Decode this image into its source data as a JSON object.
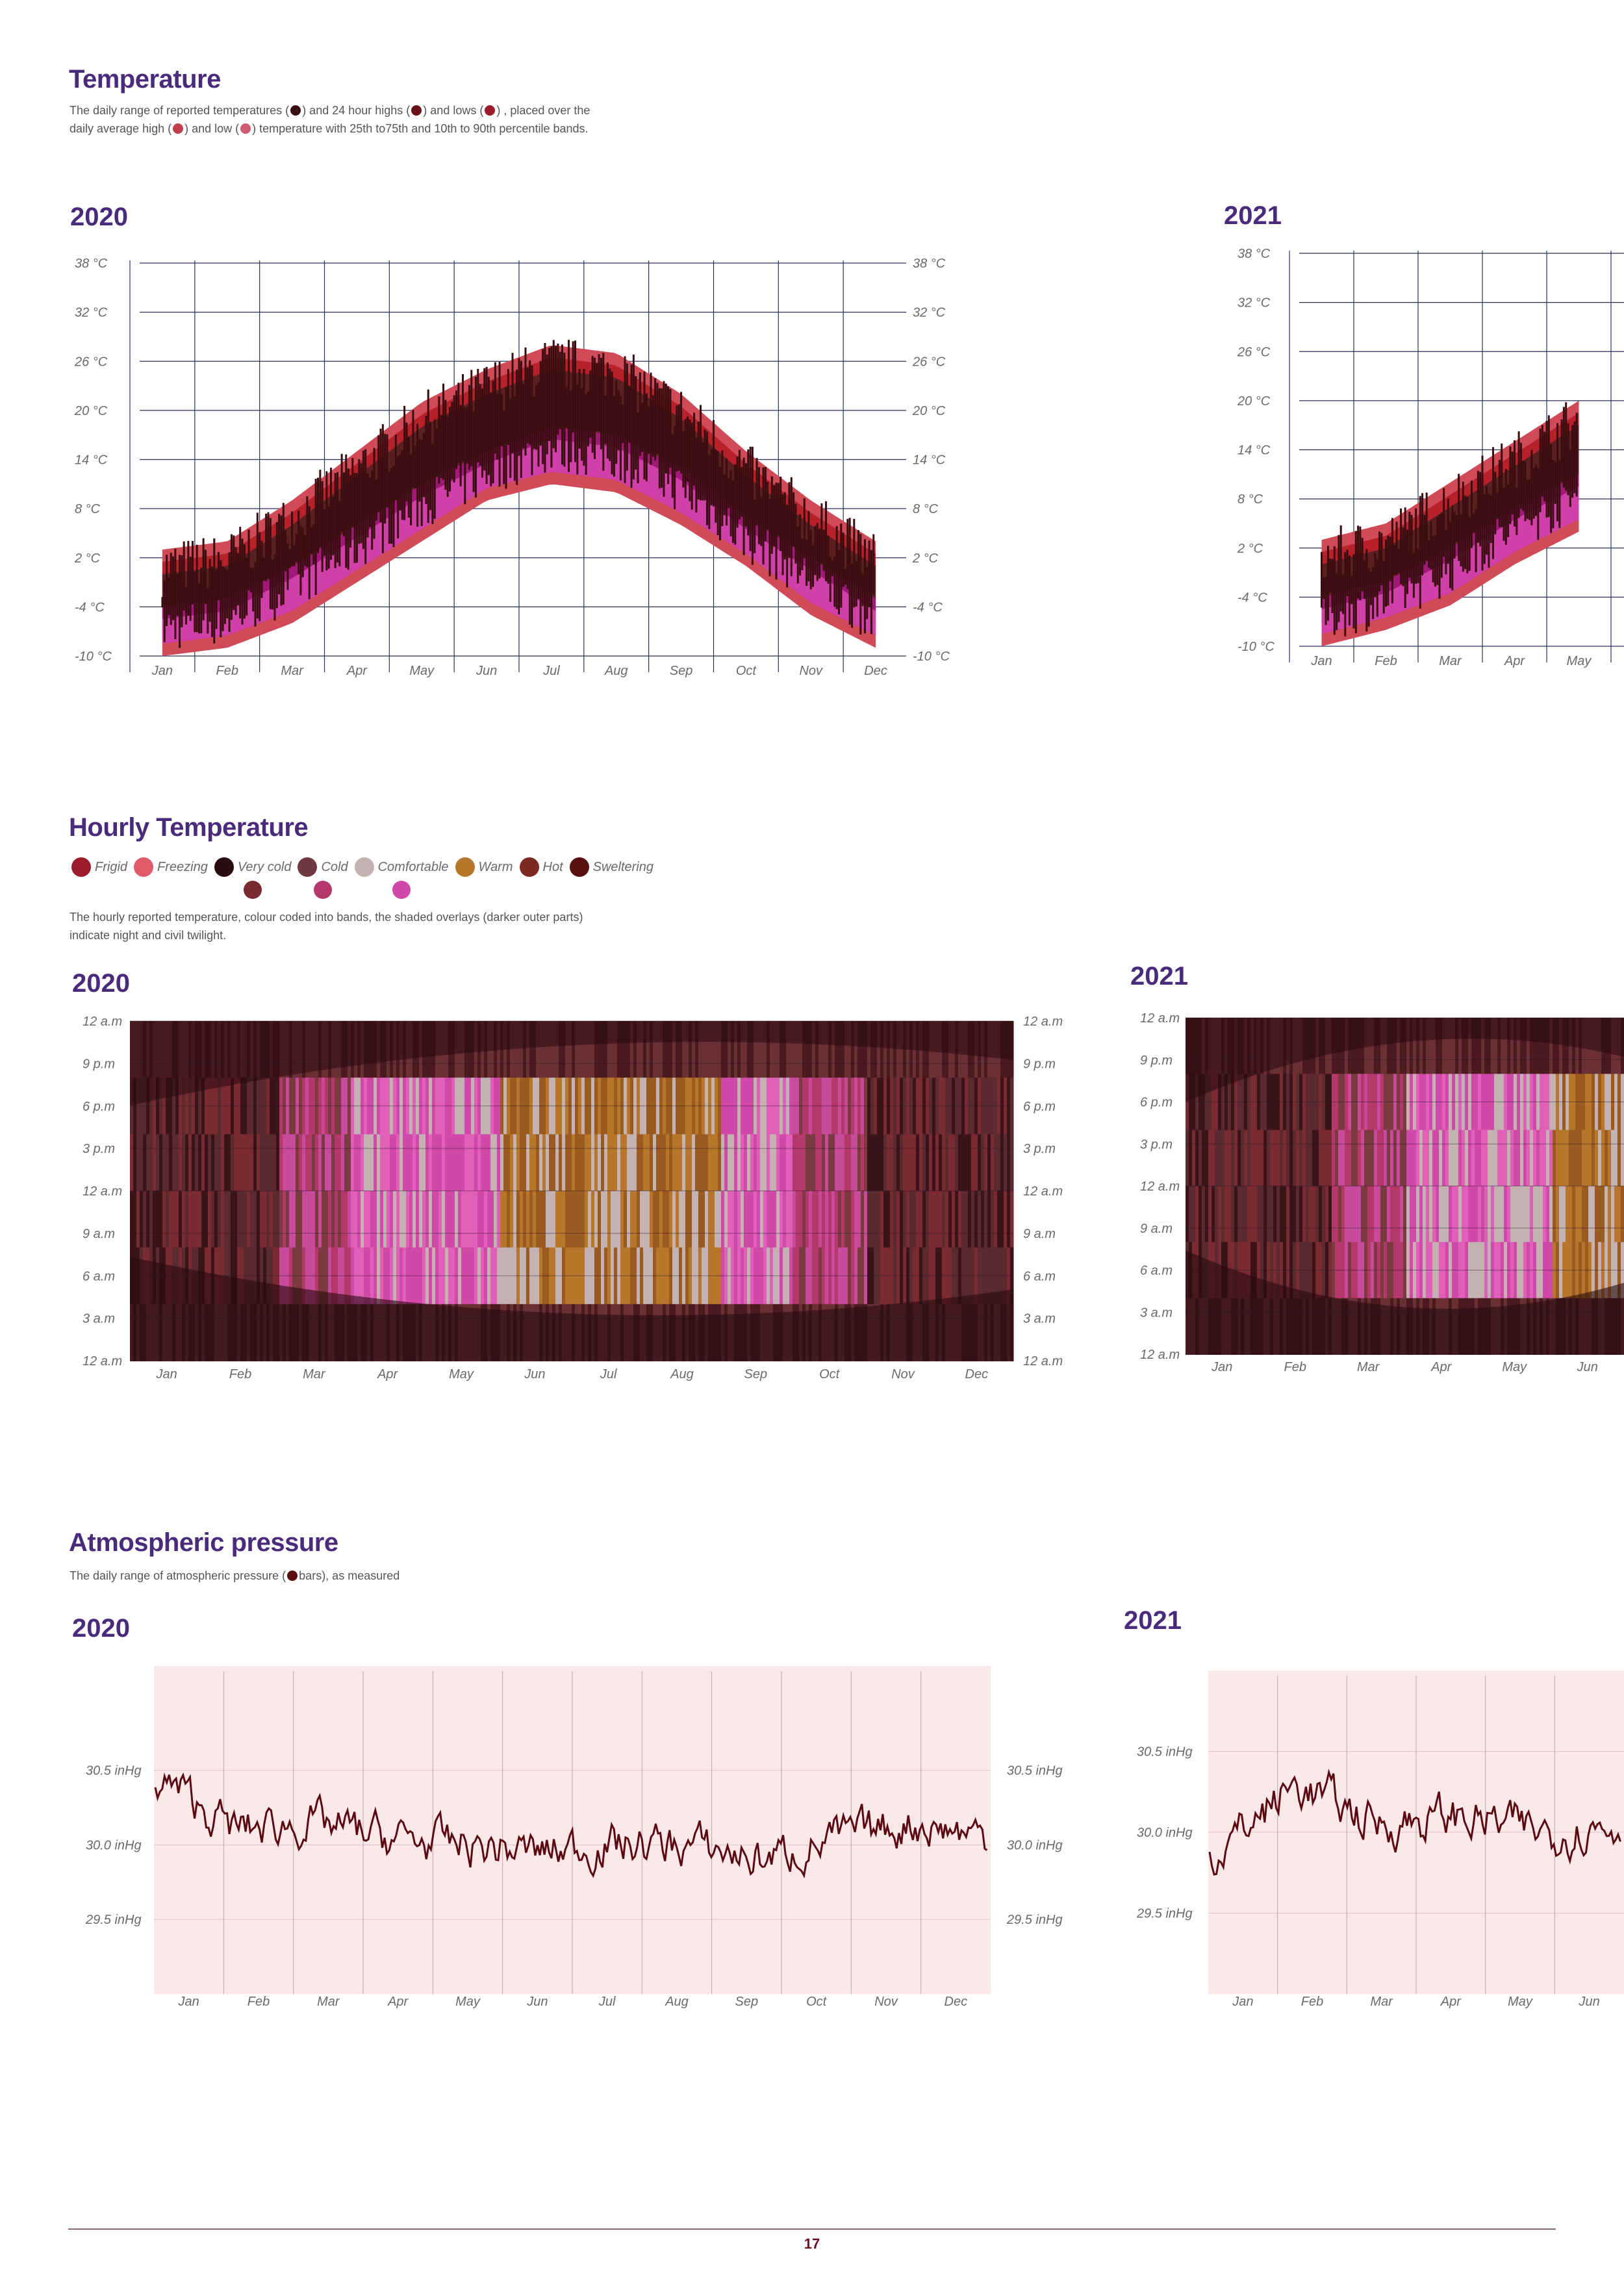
{
  "temperature": {
    "title": "Temperature",
    "desc": {
      "p1": "The daily range of reported temperatures (",
      "p2": ") and 24 hour highs (",
      "p3": ") and lows (",
      "p4": ") , placed over the",
      "p5": "daily average high (",
      "p6": ") and low (",
      "p7": ") temperature with 25th to75th and 10th to 90th percentile bands."
    }
  },
  "hourly": {
    "title": "Hourly Temperature",
    "legend": [
      {
        "label": "Frigid",
        "color": "#9b1c2c"
      },
      {
        "label": "Freezing",
        "color": "#e05a6a"
      },
      {
        "label": "Very cold",
        "color": "#2a0d10",
        "sub": "#7a2a30"
      },
      {
        "label": "Cold",
        "color": "#6e3a40",
        "sub": "#b4386a"
      },
      {
        "label": "Comfortable",
        "color": "#c4b2b2",
        "sub": "#d048a8"
      },
      {
        "label": "Warm",
        "color": "#b8762a"
      },
      {
        "label": "Hot",
        "color": "#7a2a20"
      },
      {
        "label": "Sweltering",
        "color": "#5a1010"
      }
    ],
    "desc_line1": "The hourly reported temperature, colour coded into bands, the shaded overlays (darker outer parts)",
    "desc_line2": "indicate night and civil twilight."
  },
  "pressure": {
    "title": "Atmospheric pressure",
    "desc_pre": "The daily range of atmospheric pressure (",
    "desc_post": "bars), as measured"
  },
  "years": {
    "y2020": "2020",
    "y2021": "2021"
  },
  "page_number": "17",
  "colors": {
    "title": "#4a2a7a",
    "range_bar": "#3a0d10",
    "high_dot": "#6a1018",
    "low_dot": "#9b1c2c",
    "avg_high": "#c0404a",
    "avg_low": "#d05a70",
    "band_outer": "#d04a58",
    "band_mid": "#b8202a",
    "band_inner": "#5a2020",
    "band_low_mid": "#a01878",
    "band_low_outer": "#d040a8",
    "pressure_line": "#5a0a10",
    "pressure_bg": "#fbe9ea"
  },
  "chart_data": [
    {
      "id": "temp2020",
      "type": "area",
      "title": "2020",
      "categories": [
        "Jan",
        "Feb",
        "Mar",
        "Apr",
        "May",
        "Jun",
        "Jul",
        "Aug",
        "Sep",
        "Oct",
        "Nov",
        "Dec"
      ],
      "y_ticks": [
        "38 °C",
        "32 °C",
        "26 °C",
        "20 °C",
        "14 °C",
        "8 °C",
        "2 °C",
        "-4 °C",
        "-10 °C"
      ],
      "ylim": [
        -10,
        38
      ],
      "unit": "°C",
      "series": [
        {
          "values": [
            0,
            1,
            6,
            12,
            18,
            22,
            25,
            24,
            19,
            12,
            6,
            1
          ]
        },
        {
          "values": [
            -6,
            -5,
            -1,
            4,
            9,
            13,
            16,
            15,
            11,
            5,
            0,
            -5
          ]
        },
        {
          "values": [
            -8,
            -7,
            -4,
            1,
            6,
            11,
            13,
            12,
            8,
            3,
            -3,
            -7
          ]
        }
      ]
    },
    {
      "id": "temp2021",
      "type": "area",
      "title": "2021",
      "categories": [
        "Jan",
        "Feb",
        "Mar",
        "Apr",
        "May"
      ],
      "y_ticks": [
        "38 °C",
        "32 °C",
        "26 °C",
        "20 °C",
        "14 °C",
        "8 °C",
        "2 °C",
        "-4 °C",
        "-10 °C"
      ],
      "ylim": [
        -10,
        38
      ],
      "unit": "°C",
      "series": [
        {
          "values": [
            0,
            2,
            7,
            12,
            17
          ]
        },
        {
          "values": [
            -6,
            -4,
            0,
            5,
            9
          ]
        },
        {
          "values": [
            -8,
            -6,
            -3,
            2,
            6
          ]
        }
      ]
    },
    {
      "id": "hourly2020",
      "type": "heatmap",
      "title": "2020",
      "categories": [
        "Jan",
        "Feb",
        "Mar",
        "Apr",
        "May",
        "Jun",
        "Jul",
        "Aug",
        "Sep",
        "Oct",
        "Nov",
        "Dec"
      ],
      "y_ticks": [
        "12 a.m",
        "9 p.m",
        "6 p.m",
        "3 p.m",
        "12 a.m",
        "9 a.m",
        "6 a.m",
        "3 a.m",
        "12 a.m"
      ],
      "band_by_month": [
        "Very cold",
        "Very cold",
        "Cold",
        "Comfortable",
        "Comfortable",
        "Warm",
        "Warm",
        "Warm",
        "Comfortable",
        "Cold",
        "Very cold",
        "Very cold"
      ]
    },
    {
      "id": "hourly2021",
      "type": "heatmap",
      "title": "2021",
      "categories": [
        "Jan",
        "Feb",
        "Mar",
        "Apr",
        "May",
        "Jun"
      ],
      "y_ticks": [
        "12 a.m",
        "9 p.m",
        "6 p.m",
        "3 p.m",
        "12 a.m",
        "9 a.m",
        "6 a.m",
        "3 a.m",
        "12 a.m"
      ],
      "band_by_month": [
        "Very cold",
        "Very cold",
        "Cold",
        "Comfortable",
        "Comfortable",
        "Warm"
      ]
    },
    {
      "id": "press2020",
      "type": "line",
      "title": "2020",
      "categories": [
        "Jan",
        "Feb",
        "Mar",
        "Apr",
        "May",
        "Jun",
        "Jul",
        "Aug",
        "Sep",
        "Oct",
        "Nov",
        "Dec"
      ],
      "y_ticks": [
        "30.5 inHg",
        "30.0 inHg",
        "29.5 inHg"
      ],
      "ylim": [
        29.0,
        31.2
      ],
      "unit": "inHg",
      "series": [
        {
          "values": [
            30.45,
            30.1,
            30.15,
            30.05,
            30.0,
            29.95,
            30.0,
            30.0,
            29.9,
            30.05,
            30.15,
            30.05
          ]
        }
      ]
    },
    {
      "id": "press2021",
      "type": "line",
      "title": "2021",
      "categories": [
        "Jan",
        "Feb",
        "Mar",
        "Apr",
        "May",
        "Jun"
      ],
      "y_ticks": [
        "30.5 inHg",
        "30.0 inHg",
        "29.5 inHg"
      ],
      "ylim": [
        29.0,
        31.0
      ],
      "unit": "inHg",
      "series": [
        {
          "values": [
            29.85,
            30.3,
            30.05,
            30.1,
            30.0,
            30.05
          ]
        }
      ]
    }
  ]
}
